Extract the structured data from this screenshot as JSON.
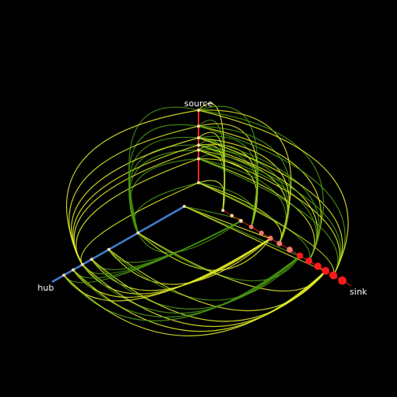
{
  "labels": {
    "source": "source",
    "hub": "hub",
    "sink": "sink"
  },
  "colors": {
    "background": "#000000",
    "source_axis": "#e8281e",
    "hub_axis": "#3f7fd0",
    "sink_axis": "#e8281e",
    "edge_yellow": "#e4f028",
    "edge_green": "#4a9a10",
    "node_red": "#ff1a1a",
    "node_salmon": "#f07a6a",
    "node_pale": "#f6dca8"
  },
  "axes": [
    "source",
    "hub",
    "sink"
  ],
  "nodes": {
    "source": [
      0.0,
      0.33,
      0.45,
      0.52,
      0.62,
      0.78,
      1.0
    ],
    "hub": [
      0.0,
      0.35,
      0.57,
      0.7,
      0.77,
      0.84,
      0.91
    ],
    "sink": [
      0.0,
      0.07,
      0.14,
      0.22,
      0.3,
      0.37,
      0.44,
      0.52,
      0.6,
      0.67,
      0.74,
      0.8,
      0.86,
      0.93
    ]
  }
}
